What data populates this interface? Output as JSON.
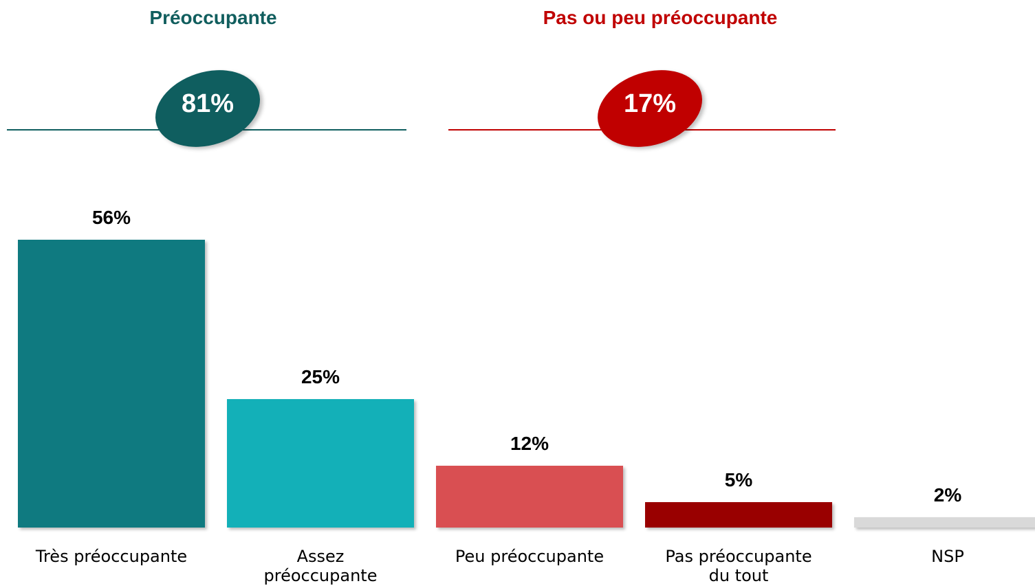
{
  "chart_data": {
    "type": "bar",
    "categories": [
      "Très préoccupante",
      "Assez\npréoccupante",
      "Peu préoccupante",
      "Pas préoccupante\ndu tout",
      "NSP"
    ],
    "values": [
      56,
      25,
      12,
      5,
      2
    ],
    "value_labels": [
      "56%",
      "25%",
      "12%",
      "5%",
      "2%"
    ],
    "colors": [
      "#0f7a80",
      "#13b0b8",
      "#d94f52",
      "#990000",
      "#d9d9d9"
    ],
    "ylim": [
      0,
      60
    ],
    "groups": [
      {
        "name": "Préoccupante",
        "value": 81,
        "value_label": "81%",
        "color": "#0f5e5f",
        "title_color": "#115e5e"
      },
      {
        "name": "Pas ou peu préoccupante",
        "value": 17,
        "value_label": "17%",
        "color": "#c00000",
        "title_color": "#c00000"
      }
    ]
  }
}
